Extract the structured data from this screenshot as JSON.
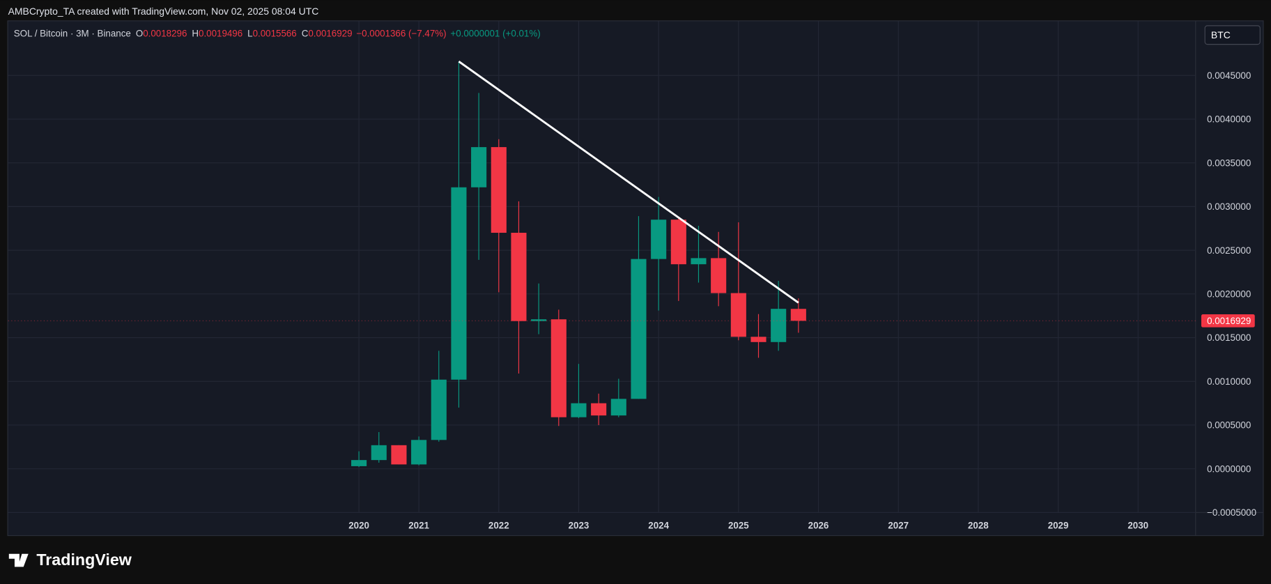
{
  "header": {
    "credit": "AMBCrypto_TA created with TradingView.com, Nov 02, 2025 08:04 UTC"
  },
  "legend": {
    "symbol": "SOL / Bitcoin · 3M · Binance",
    "o_label": "O",
    "h_label": "H",
    "l_label": "L",
    "c_label": "C",
    "change": "−0.0001366 (−7.47%)",
    "extra": "+0.0000001 (+0.01%)"
  },
  "buttons": {
    "currency": "BTC"
  },
  "footer": {
    "brand": "TradingView"
  },
  "chart_data": {
    "type": "candlestick",
    "up_color": "#089981",
    "down_color": "#f23645",
    "grid": true,
    "candles": {
      "x": [
        2020.25,
        2020.5,
        2020.75,
        2021,
        2021.25,
        2021.5,
        2021.75,
        2022,
        2022.25,
        2022.5,
        2022.75,
        2023,
        2023.25,
        2023.5,
        2023.75,
        2024,
        2024.25,
        2024.5,
        2024.75,
        2025,
        2025.25,
        2025.5,
        2025.75
      ],
      "open": [
        3e-05,
        0.0001,
        0.00027,
        5e-05,
        0.00033,
        0.00102,
        0.00322,
        0.00368,
        0.0027,
        0.00169,
        0.00171,
        0.00059,
        0.00075,
        0.00061,
        0.0008,
        0.0024,
        0.00285,
        0.00234,
        0.00241,
        0.00201,
        0.00151,
        0.00145,
        0.0018296
      ],
      "high": [
        0.0002,
        0.00042,
        0.00027,
        0.00037,
        0.00135,
        0.00466,
        0.0043,
        0.00377,
        0.00306,
        0.00212,
        0.00182,
        0.0012,
        0.00086,
        0.00103,
        0.00289,
        0.00311,
        0.00288,
        0.00278,
        0.00271,
        0.00282,
        0.00177,
        0.00215,
        0.0019496
      ],
      "low": [
        2e-05,
        7e-05,
        5e-05,
        4e-05,
        0.00031,
        0.0007,
        0.00239,
        0.00202,
        0.00109,
        0.00154,
        0.00049,
        0.00058,
        0.0005,
        0.00059,
        0.0008,
        0.00181,
        0.00192,
        0.00213,
        0.00186,
        0.00147,
        0.00127,
        0.00135,
        0.0015566
      ],
      "close": [
        0.0001,
        0.00027,
        5e-05,
        0.00033,
        0.00102,
        0.00322,
        0.00368,
        0.0027,
        0.00169,
        0.00171,
        0.00059,
        0.00075,
        0.00061,
        0.0008,
        0.0024,
        0.00285,
        0.00234,
        0.00241,
        0.00201,
        0.00151,
        0.00145,
        0.00183,
        0.0016929
      ]
    },
    "trendline": {
      "x": [
        2021.5,
        2025.75
      ],
      "y": [
        0.00466,
        0.0019
      ],
      "color": "#ffffff"
    },
    "xlim": [
      2015.86,
      2030.72
    ],
    "xticks": [
      {
        "value": 2020.25,
        "label": "2020"
      },
      2021,
      2022,
      2023,
      2024,
      2025,
      2026,
      2027,
      2028,
      2029,
      2030
    ],
    "ylim": [
      -0.0005,
      0.00512
    ],
    "yticks": [
      {
        "value": -0.0005,
        "label": "−0.0005000"
      },
      {
        "value": 0,
        "label": "0.0000000"
      },
      {
        "value": 0.0005,
        "label": "0.0005000"
      },
      {
        "value": 0.001,
        "label": "0.0010000"
      },
      {
        "value": 0.0015,
        "label": "0.0015000"
      },
      {
        "value": 0.002,
        "label": "0.0020000"
      },
      {
        "value": 0.0025,
        "label": "0.0025000"
      },
      {
        "value": 0.003,
        "label": "0.0030000"
      },
      {
        "value": 0.0035,
        "label": "0.0035000"
      },
      {
        "value": 0.004,
        "label": "0.0040000"
      },
      {
        "value": 0.0045,
        "label": "0.0045000"
      }
    ]
  }
}
